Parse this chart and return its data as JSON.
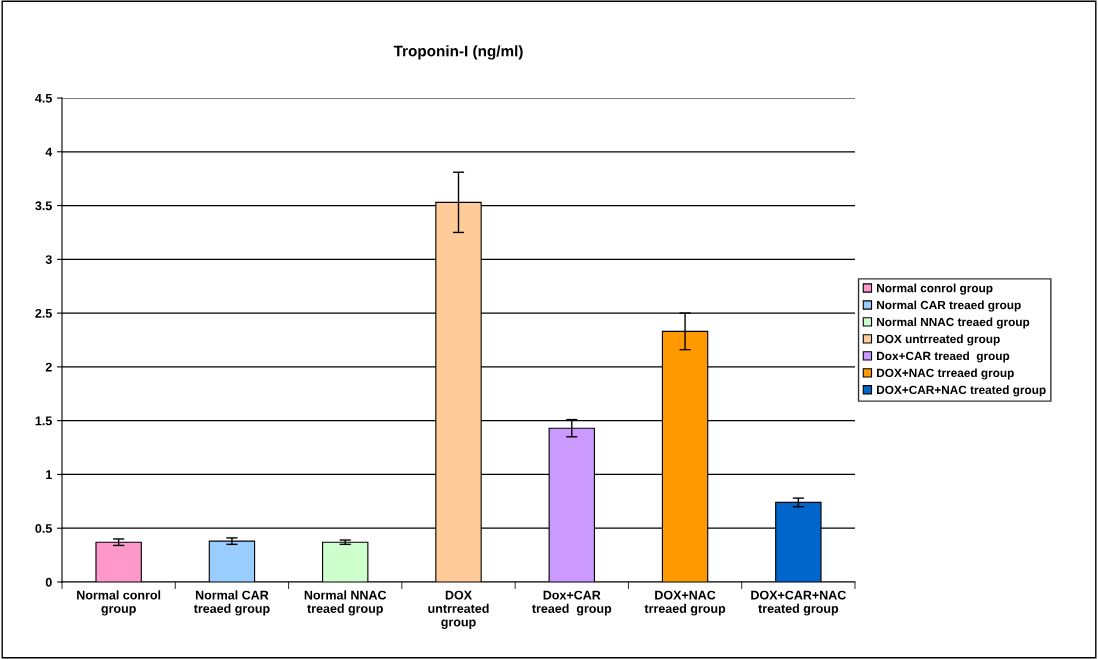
{
  "chart_data": {
    "type": "bar",
    "title": "Troponin-I (ng/ml)",
    "categories": [
      "Normal conrol\ngroup",
      "Normal CAR\ntreaed group",
      "Normal NNAC\ntreaed group",
      "DOX\nuntrreated\ngroup",
      "Dox+CAR\ntreaed  group",
      "DOX+NAC\ntrreaed group",
      "DOX+CAR+NAC\ntreated group"
    ],
    "series": [
      {
        "name": "Normal conrol group",
        "color": "#ff99cc",
        "values": [
          0.37,
          null,
          null,
          null,
          null,
          null,
          null
        ],
        "errors": [
          0.03,
          null,
          null,
          null,
          null,
          null,
          null
        ]
      },
      {
        "name": "Normal CAR treaed group",
        "color": "#99ccff",
        "values": [
          null,
          0.38,
          null,
          null,
          null,
          null,
          null
        ],
        "errors": [
          null,
          0.03,
          null,
          null,
          null,
          null,
          null
        ]
      },
      {
        "name": "Normal NNAC treaed group",
        "color": "#ccffcc",
        "values": [
          null,
          null,
          0.37,
          null,
          null,
          null,
          null
        ],
        "errors": [
          null,
          null,
          0.02,
          null,
          null,
          null,
          null
        ]
      },
      {
        "name": "DOX untrreated group",
        "color": "#ffcc99",
        "values": [
          null,
          null,
          null,
          3.53,
          null,
          null,
          null
        ],
        "errors": [
          null,
          null,
          null,
          0.28,
          null,
          null,
          null
        ]
      },
      {
        "name": "Dox+CAR treaed  group",
        "color": "#cc99ff",
        "values": [
          null,
          null,
          null,
          null,
          1.43,
          null,
          null
        ],
        "errors": [
          null,
          null,
          null,
          null,
          0.08,
          null,
          null
        ]
      },
      {
        "name": "DOX+NAC trreaed group",
        "color": "#ff9900",
        "values": [
          null,
          null,
          null,
          null,
          null,
          2.33,
          null
        ],
        "errors": [
          null,
          null,
          null,
          null,
          null,
          0.17,
          null
        ]
      },
      {
        "name": "DOX+CAR+NAC treated group",
        "color": "#0066cc",
        "values": [
          null,
          null,
          null,
          null,
          null,
          null,
          0.74
        ],
        "errors": [
          null,
          null,
          null,
          null,
          null,
          null,
          0.04
        ]
      }
    ],
    "ylim": [
      0,
      4.5
    ],
    "yticks": [
      0,
      0.5,
      1,
      1.5,
      2,
      2.5,
      3,
      3.5,
      4,
      4.5
    ],
    "grid": "y",
    "legend": "right"
  }
}
